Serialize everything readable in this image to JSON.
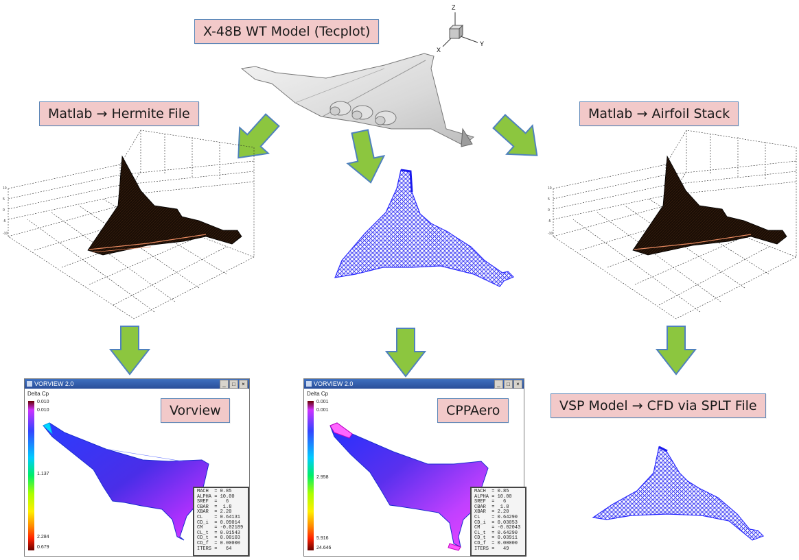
{
  "labels": {
    "top": "X-48B WT Model (Tecplot)",
    "left": "Matlab → Hermite File",
    "right": "Matlab → Airfoil Stack",
    "vorview": "Vorview",
    "cppaero": "CPPAero",
    "vsp": "VSP Model  → CFD via SPLT File"
  },
  "axes_triad": {
    "z": "Z",
    "x": "X",
    "y": "Y"
  },
  "colors": {
    "label_fill": "#f2c9c9",
    "label_border": "#5b86b7",
    "arrow_fill": "#8cc63f",
    "arrow_stroke": "#4f81bd",
    "mesh_blue": "#4040ff",
    "mesh_dark": "#1a0d05"
  },
  "vorview_window": {
    "title": "VORVIEW 2.0",
    "colorbar_title": "Delta Cp",
    "cb_values": [
      "0.010",
      "0.010",
      "1.137",
      "2.284",
      "0.679"
    ],
    "legend": [
      "MACH  = 0.85",
      "ALPHA = 10.00",
      "SREF  =   6",
      "CBAR  =  1.8",
      "XBAR  = 2.20",
      "CL    = 0.64131",
      "CD_i  = 0.09014",
      "CM    = -0.02189",
      "CL_t  = 0.01543",
      "CD_t  = 0.00103",
      "CD_f  = 0.00000",
      "ITERS =   64"
    ]
  },
  "cppaero_window": {
    "title": "VORVIEW 2.0",
    "colorbar_title": "Delta Cp",
    "cb_values": [
      "0.001",
      "0.001",
      "2.958",
      "5.916",
      "24.646"
    ],
    "legend": [
      "MACH  = 0.85",
      "ALPHA = 10.00",
      "SREF  =   6",
      "CBAR  =  1.8",
      "XBAR  = 2.20",
      "CL    = 0.64290",
      "CD_i  = 0.03053",
      "CM    = -0.02043",
      "CL_t  = 0.64290",
      "CD_t  = 0.03911",
      "CD_f  = 0.00000",
      "ITERS =   49"
    ]
  },
  "window_buttons": [
    "_",
    "□",
    "×"
  ]
}
